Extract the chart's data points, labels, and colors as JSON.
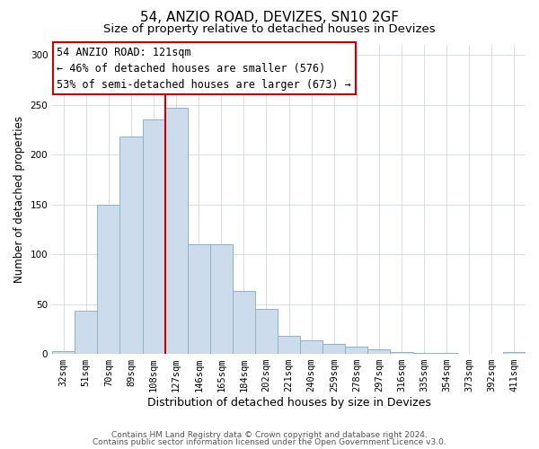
{
  "title": "54, ANZIO ROAD, DEVIZES, SN10 2GF",
  "subtitle": "Size of property relative to detached houses in Devizes",
  "xlabel": "Distribution of detached houses by size in Devizes",
  "ylabel": "Number of detached properties",
  "bar_labels": [
    "32sqm",
    "51sqm",
    "70sqm",
    "89sqm",
    "108sqm",
    "127sqm",
    "146sqm",
    "165sqm",
    "184sqm",
    "202sqm",
    "221sqm",
    "240sqm",
    "259sqm",
    "278sqm",
    "297sqm",
    "316sqm",
    "335sqm",
    "354sqm",
    "373sqm",
    "392sqm",
    "411sqm"
  ],
  "bar_values": [
    3,
    43,
    150,
    218,
    235,
    247,
    110,
    110,
    63,
    45,
    18,
    14,
    10,
    7,
    5,
    2,
    1,
    1,
    0,
    0,
    2
  ],
  "bar_color": "#ccdcec",
  "bar_edge_color": "#8ab4cc",
  "vline_x_index": 5,
  "vline_color": "#cc0000",
  "annotation_title": "54 ANZIO ROAD: 121sqm",
  "annotation_line1": "← 46% of detached houses are smaller (576)",
  "annotation_line2": "53% of semi-detached houses are larger (673) →",
  "annotation_box_color": "#ffffff",
  "annotation_box_edge": "#cc0000",
  "footer1": "Contains HM Land Registry data © Crown copyright and database right 2024.",
  "footer2": "Contains public sector information licensed under the Open Government Licence v3.0.",
  "ylim": [
    0,
    310
  ],
  "yticks": [
    0,
    50,
    100,
    150,
    200,
    250,
    300
  ],
  "title_fontsize": 11,
  "subtitle_fontsize": 9.5,
  "xlabel_fontsize": 9,
  "ylabel_fontsize": 8.5,
  "tick_fontsize": 7.5,
  "footer_fontsize": 6.5,
  "annotation_fontsize": 8.5
}
